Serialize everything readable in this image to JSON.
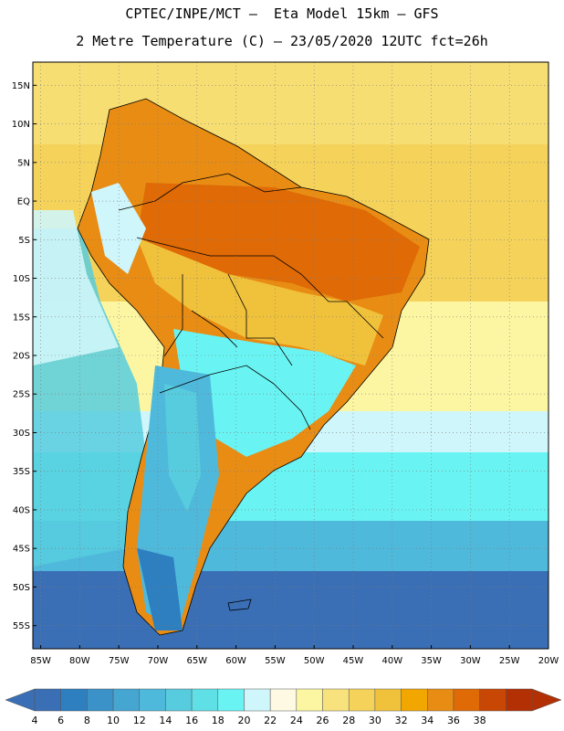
{
  "header": {
    "line1": "CPTEC/INPE/MCT –  Eta Model 15km – GFS",
    "line2": "2 Metre Temperature (C) – 23/05/2020 12UTC fct=26h"
  },
  "map": {
    "lat_range": [
      -58,
      18
    ],
    "lon_range": [
      -86,
      -20
    ],
    "lat_ticks": [
      "15N",
      "10N",
      "5N",
      "EQ",
      "5S",
      "10S",
      "15S",
      "20S",
      "25S",
      "30S",
      "35S",
      "40S",
      "45S",
      "50S",
      "55S"
    ],
    "lat_values": [
      15,
      10,
      5,
      0,
      -5,
      -10,
      -15,
      -20,
      -25,
      -30,
      -35,
      -40,
      -45,
      -50,
      -55
    ],
    "lon_ticks": [
      "85W",
      "80W",
      "75W",
      "70W",
      "65W",
      "60W",
      "55W",
      "50W",
      "45W",
      "40W",
      "35W",
      "30W",
      "25W",
      "20W"
    ],
    "lon_values": [
      -85,
      -80,
      -75,
      -70,
      -65,
      -60,
      -55,
      -50,
      -45,
      -40,
      -35,
      -30,
      -25,
      -20
    ],
    "gridlines": "dotted"
  },
  "colorbar": {
    "labels": [
      "4",
      "6",
      "8",
      "10",
      "12",
      "14",
      "16",
      "18",
      "20",
      "22",
      "24",
      "26",
      "28",
      "30",
      "32",
      "34",
      "36",
      "38"
    ],
    "colors": [
      "#3a6fb5",
      "#2d7fc0",
      "#3a92c8",
      "#45a6d2",
      "#4fb9dc",
      "#57ccde",
      "#5ee0e6",
      "#69f4f3",
      "#cff6fa",
      "#fdf9e3",
      "#fcf6a2",
      "#f8e27e",
      "#f5d35b",
      "#f0c23c",
      "#f2a700",
      "#e88c14",
      "#df6a06",
      "#c84705",
      "#b33004"
    ]
  }
}
